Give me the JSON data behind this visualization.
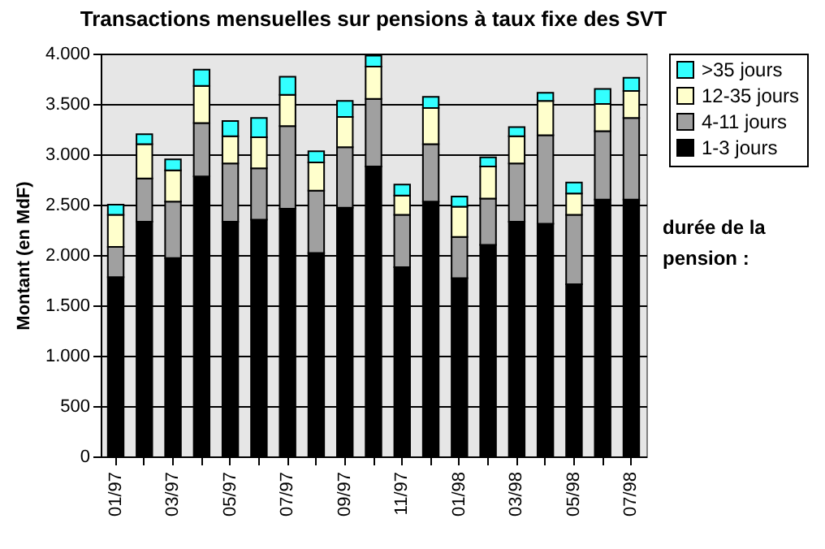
{
  "chart_data": {
    "type": "bar",
    "stacked": true,
    "title": "Transactions mensuelles sur pensions à taux fixe des SVT",
    "ylabel": "Montant (en MdF)",
    "legend_title": "durée de la pension :",
    "categories": [
      "01/97",
      null,
      "03/97",
      null,
      "05/97",
      null,
      "07/97",
      null,
      "09/97",
      null,
      "11/97",
      null,
      "01/98",
      null,
      "03/98",
      null,
      "05/98",
      null,
      "07/98"
    ],
    "series": [
      {
        "name": "1-3 jours",
        "color": "#000000",
        "values": [
          1780,
          2330,
          1970,
          2780,
          2330,
          2350,
          2460,
          2020,
          2470,
          2880,
          1880,
          2530,
          1770,
          2100,
          2330,
          2310,
          1710,
          2550,
          2550
        ]
      },
      {
        "name": "4-11 jours",
        "color": "#a0a0a0",
        "values": [
          300,
          430,
          560,
          530,
          580,
          510,
          820,
          620,
          600,
          670,
          520,
          570,
          410,
          460,
          580,
          880,
          690,
          680,
          810
        ]
      },
      {
        "name": "12-35 jours",
        "color": "#ffffcc",
        "values": [
          320,
          340,
          310,
          370,
          270,
          310,
          310,
          280,
          300,
          320,
          190,
          360,
          300,
          320,
          270,
          340,
          210,
          270,
          270
        ]
      },
      {
        "name": ">35 jours",
        "color": "#33ffff",
        "values": [
          100,
          100,
          110,
          160,
          150,
          190,
          180,
          110,
          160,
          110,
          110,
          110,
          100,
          90,
          90,
          80,
          110,
          150,
          130
        ]
      }
    ],
    "ylim": [
      0,
      4000
    ],
    "yticks": [
      0,
      500,
      {
        "value": 1000,
        "label": "1.000"
      },
      {
        "value": 1500,
        "label": "1.500"
      },
      {
        "value": 2000,
        "label": "2.000"
      },
      {
        "value": 2500,
        "label": "2.500"
      },
      {
        "value": 3000,
        "label": "3.000"
      },
      {
        "value": 3500,
        "label": "3.500"
      },
      {
        "value": 4000,
        "label": "4.000"
      }
    ],
    "grid": "y",
    "legend": "right"
  }
}
